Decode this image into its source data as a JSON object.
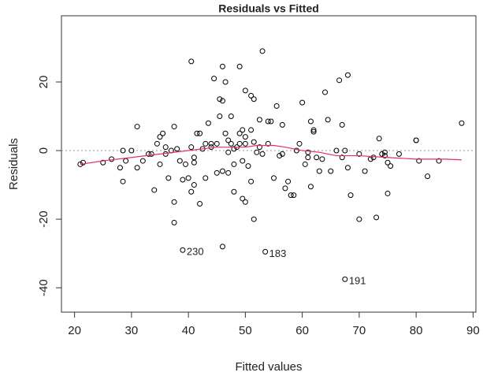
{
  "chart_data": {
    "type": "scatter",
    "title": "Residuals vs Fitted",
    "x_label": "Fitted values",
    "y_label": "Residuals",
    "xlim": [
      17.7,
      90.5
    ],
    "ylim": [
      -47.1,
      39.3
    ],
    "xticks": [
      20,
      30,
      40,
      50,
      60,
      70,
      80,
      90
    ],
    "yticks": [
      -40,
      -20,
      0,
      20
    ],
    "reference_line": 0,
    "point_color": "#000000",
    "smooth_color": "#e0306a",
    "reference_color": "#999999",
    "x": [
      21,
      21.5,
      25,
      26.5,
      28,
      28.5,
      28.5,
      29,
      30,
      31,
      31,
      32,
      33,
      33.5,
      34,
      34.5,
      35,
      35,
      35.5,
      36,
      36,
      36.5,
      37,
      37.5,
      37.5,
      37.5,
      38,
      38.5,
      39,
      39.5,
      40,
      40.5,
      40.5,
      40.5,
      41,
      41,
      41,
      41.5,
      42,
      42,
      42.5,
      43,
      43,
      43.5,
      44,
      44,
      44.5,
      45,
      45,
      45.5,
      45.5,
      46,
      46,
      46,
      46,
      46.5,
      46.5,
      47,
      47,
      47,
      47.5,
      47.5,
      48,
      48,
      48,
      48.5,
      49,
      49,
      49,
      49.5,
      49.5,
      49.5,
      50,
      50,
      50,
      50,
      50.5,
      51,
      51,
      51,
      51.5,
      51.5,
      51.5,
      52,
      52.5,
      52.5,
      53,
      53,
      54,
      54,
      54.5,
      55,
      55.5,
      56,
      56.5,
      56.5,
      57,
      57.5,
      58,
      58.5,
      59,
      59.5,
      60,
      60.5,
      61,
      61,
      61.5,
      61.5,
      62,
      62,
      62.5,
      63,
      63.5,
      64,
      64.5,
      65,
      66,
      66.5,
      67,
      67,
      67.5,
      68,
      68,
      68.5,
      70,
      70,
      71,
      72,
      72.5,
      73,
      73.5,
      74,
      74.5,
      74.5,
      75,
      75,
      75.5,
      77,
      80,
      80,
      80.5,
      82,
      84,
      88
    ],
    "values": [
      -4,
      -3.5,
      -3.5,
      -2.5,
      -5,
      0,
      -9,
      -3,
      0,
      7,
      -5,
      -3,
      -1,
      -1,
      -11.5,
      2,
      -4,
      4,
      5,
      -1,
      1,
      -8,
      0,
      -15,
      -21,
      7,
      0.5,
      -3,
      -8.5,
      -4,
      -8,
      -12,
      26,
      1,
      -3.5,
      -10,
      -2,
      5,
      -15.5,
      5,
      0.5,
      -8,
      2,
      8,
      1,
      2,
      21,
      -6.5,
      2,
      15,
      10,
      14.5,
      24.5,
      -6,
      -28,
      20,
      5,
      -6.5,
      -0.5,
      3,
      10,
      2,
      -12,
      -4,
      0.5,
      1,
      5,
      24.5,
      2,
      6,
      -3,
      -14,
      -15,
      2,
      4,
      17.5,
      -4.5,
      16,
      6,
      -9,
      15,
      -20,
      2.5,
      -0.5,
      1,
      9,
      -1,
      29,
      2,
      8.5,
      8.5,
      -8,
      13,
      -1.5,
      -1,
      7.5,
      -11,
      -9,
      -13,
      -13,
      0,
      2,
      14,
      -4,
      -0.5,
      -2,
      -10.5,
      8.5,
      6,
      5.5,
      -2,
      -6,
      -2.5,
      17,
      9,
      -6,
      0,
      20.5,
      7.5,
      -2,
      0,
      22,
      -5,
      -13,
      -1,
      -20,
      -6,
      -2.5,
      -2,
      -19.5,
      3.5,
      -1,
      -0.5,
      -1.5,
      -12.5,
      -3.5,
      -4.5,
      -1,
      3,
      3,
      -3,
      -7.5,
      -3,
      8
    ],
    "labeled_points": {
      "x": [
        39,
        53.5,
        67.5
      ],
      "values": [
        -29,
        -29.5,
        -37.5
      ],
      "labels": [
        "230",
        "183",
        "191"
      ]
    },
    "smooth": {
      "x": [
        21,
        25,
        30,
        35,
        40,
        45,
        50,
        52,
        55,
        57,
        60,
        63,
        66,
        70,
        75,
        80,
        85,
        88
      ],
      "values": [
        -4,
        -3,
        -2,
        -1,
        0,
        1,
        1,
        1.5,
        1.5,
        1,
        0,
        -0.5,
        -1.5,
        -1.5,
        -2,
        -2.5,
        -2.5,
        -2.7
      ]
    }
  }
}
